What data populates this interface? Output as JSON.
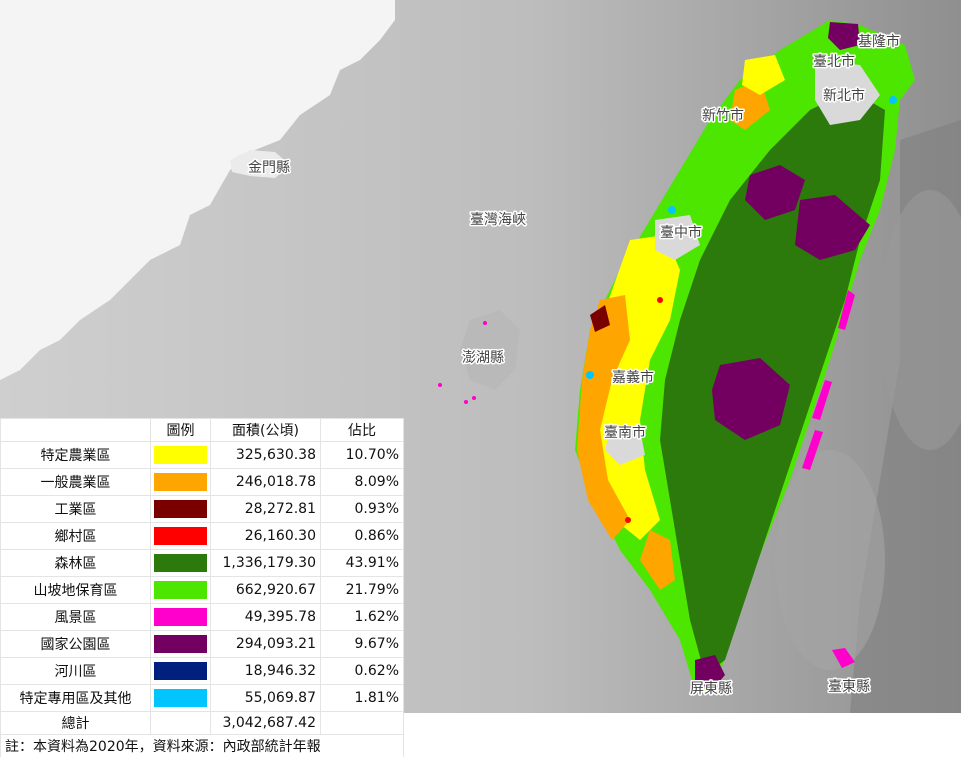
{
  "places": [
    {
      "id": "jinmen",
      "name": "金門縣"
    },
    {
      "id": "strait",
      "name": "臺灣海峽"
    },
    {
      "id": "penghu",
      "name": "澎湖縣"
    },
    {
      "id": "taipei",
      "name": "臺北市"
    },
    {
      "id": "keelung",
      "name": "基隆市"
    },
    {
      "id": "newtaipei",
      "name": "新北市"
    },
    {
      "id": "hsinchu",
      "name": "新竹市"
    },
    {
      "id": "taichung",
      "name": "臺中市"
    },
    {
      "id": "chiayi",
      "name": "嘉義市"
    },
    {
      "id": "tainan",
      "name": "臺南市"
    },
    {
      "id": "pingtung",
      "name": "屏東縣"
    },
    {
      "id": "taitung",
      "name": "臺東縣"
    }
  ],
  "legend": {
    "headers": {
      "name": "",
      "swatch": "圖例",
      "area": "面積(公頃)",
      "share": "佔比"
    },
    "rows": [
      {
        "name": "特定農業區",
        "color": "#ffff00",
        "area": "325,630.38",
        "share": "10.70%"
      },
      {
        "name": "一般農業區",
        "color": "#ffa500",
        "area": "246,018.78",
        "share": "8.09%"
      },
      {
        "name": "工業區",
        "color": "#7a0000",
        "area": "28,272.81",
        "share": "0.93%"
      },
      {
        "name": "鄉村區",
        "color": "#ff0000",
        "area": "26,160.30",
        "share": "0.86%"
      },
      {
        "name": "森林區",
        "color": "#2b7a0b",
        "area": "1,336,179.30",
        "share": "43.91%"
      },
      {
        "name": "山坡地保育區",
        "color": "#4ce600",
        "area": "662,920.67",
        "share": "21.79%"
      },
      {
        "name": "風景區",
        "color": "#ff00cc",
        "area": "49,395.78",
        "share": "1.62%"
      },
      {
        "name": "國家公園區",
        "color": "#730060",
        "area": "294,093.21",
        "share": "9.67%"
      },
      {
        "name": "河川區",
        "color": "#002080",
        "area": "18,946.32",
        "share": "0.62%"
      },
      {
        "name": "特定專用區及其他",
        "color": "#00c5ff",
        "area": "55,069.87",
        "share": "1.81%"
      }
    ],
    "total": {
      "name": "總計",
      "area": "3,042,687.42"
    },
    "note": "註：本資料為2020年，資料來源：內政部統計年報"
  }
}
